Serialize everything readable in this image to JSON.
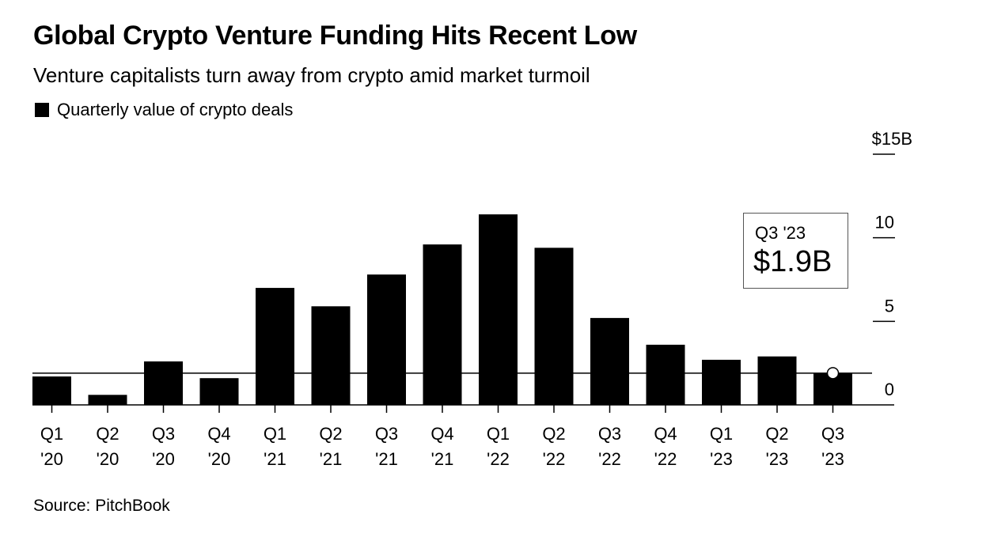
{
  "header": {
    "title": "Global Crypto Venture Funding Hits Recent Low",
    "subtitle": "Venture capitalists turn away from crypto amid market turmoil"
  },
  "legend": {
    "label": "Quarterly value of crypto deals"
  },
  "annotation": {
    "period": "Q3 '23",
    "value": "$1.9B"
  },
  "footer": {
    "source": "Source: PitchBook"
  },
  "chart_data": {
    "type": "bar",
    "title": "Global Crypto Venture Funding Hits Recent Low",
    "subtitle": "Venture capitalists turn away from crypto amid market turmoil",
    "xlabel": "",
    "ylabel": "Quarterly value of crypto deals ($B)",
    "categories": [
      [
        "Q1",
        "'20"
      ],
      [
        "Q2",
        "'20"
      ],
      [
        "Q3",
        "'20"
      ],
      [
        "Q4",
        "'20"
      ],
      [
        "Q1",
        "'21"
      ],
      [
        "Q2",
        "'21"
      ],
      [
        "Q3",
        "'21"
      ],
      [
        "Q4",
        "'21"
      ],
      [
        "Q1",
        "'22"
      ],
      [
        "Q2",
        "'22"
      ],
      [
        "Q3",
        "'22"
      ],
      [
        "Q4",
        "'22"
      ],
      [
        "Q1",
        "'23"
      ],
      [
        "Q2",
        "'23"
      ],
      [
        "Q3",
        "'23"
      ]
    ],
    "values": [
      1.7,
      0.6,
      2.6,
      1.6,
      7.0,
      5.9,
      7.8,
      9.6,
      11.4,
      9.4,
      5.2,
      3.6,
      2.7,
      2.9,
      1.9
    ],
    "ylim": [
      0,
      15
    ],
    "yticks": [
      0,
      5,
      10,
      15
    ],
    "ytick_labels": [
      "0",
      "5",
      "10",
      "$15B"
    ],
    "y_axis_side": "right",
    "reference_line": {
      "value": 1.9,
      "label": "Q3 '23 level"
    },
    "highlight": {
      "index": 14,
      "marker": "circle"
    },
    "legend": [
      {
        "name": "Quarterly value of crypto deals",
        "color": "#000000"
      }
    ],
    "legend_position": "top-left",
    "grid": false,
    "colors": {
      "bar": "#000000",
      "axis": "#000000",
      "marker_fill": "#ffffff"
    }
  }
}
